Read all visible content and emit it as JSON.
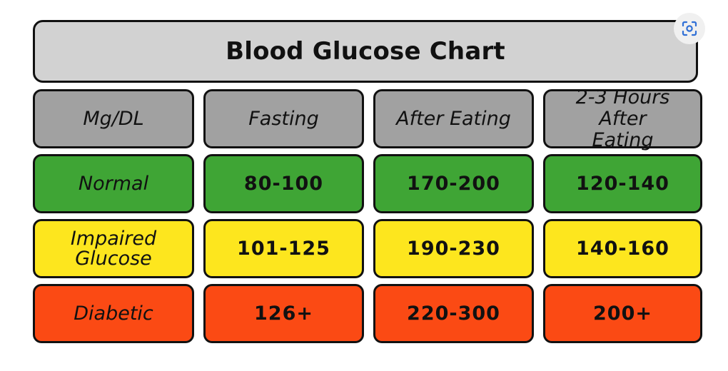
{
  "chart_data": {
    "type": "table",
    "title": "Blood Glucose Chart",
    "columns": [
      "Mg/DL",
      "Fasting",
      "After Eating",
      "2-3 Hours After Eating"
    ],
    "rows": [
      {
        "label": "Normal",
        "values": [
          "80-100",
          "170-200",
          "120-140"
        ],
        "color": "#3fa535"
      },
      {
        "label": "Impaired Glucose",
        "values": [
          "101-125",
          "190-230",
          "140-160"
        ],
        "color": "#fde61e"
      },
      {
        "label": "Diabetic",
        "values": [
          "126+",
          "220-300",
          "200+"
        ],
        "color": "#fb4a14"
      }
    ],
    "header_color": "#a1a1a1",
    "title_color": "#d2d2d2"
  },
  "icons": {
    "visual_search": "image-search-icon"
  }
}
